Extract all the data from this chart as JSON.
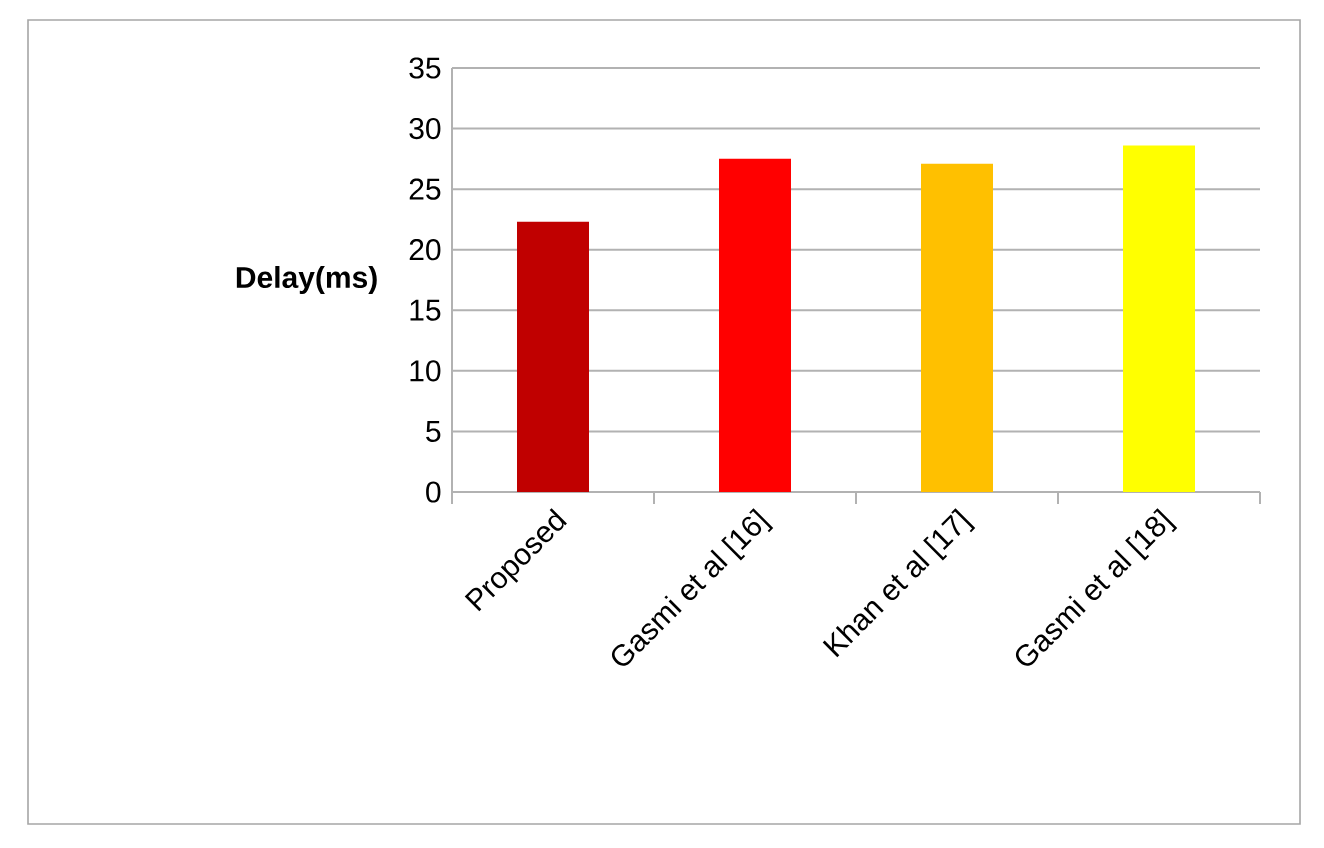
{
  "chart_data": {
    "type": "bar",
    "ylabel": "Delay(ms)",
    "categories": [
      "Proposed",
      "Gasmi et al [16]",
      "Khan et al [17]",
      "Gasmi et al [18]"
    ],
    "values": [
      22.3,
      27.5,
      27.1,
      28.6
    ],
    "colors": [
      "#c00000",
      "#ff0000",
      "#ffc000",
      "#ffff00"
    ],
    "ylim": [
      0,
      35
    ],
    "yticks": [
      0,
      5,
      10,
      15,
      20,
      25,
      30,
      35
    ],
    "grid": "y"
  }
}
